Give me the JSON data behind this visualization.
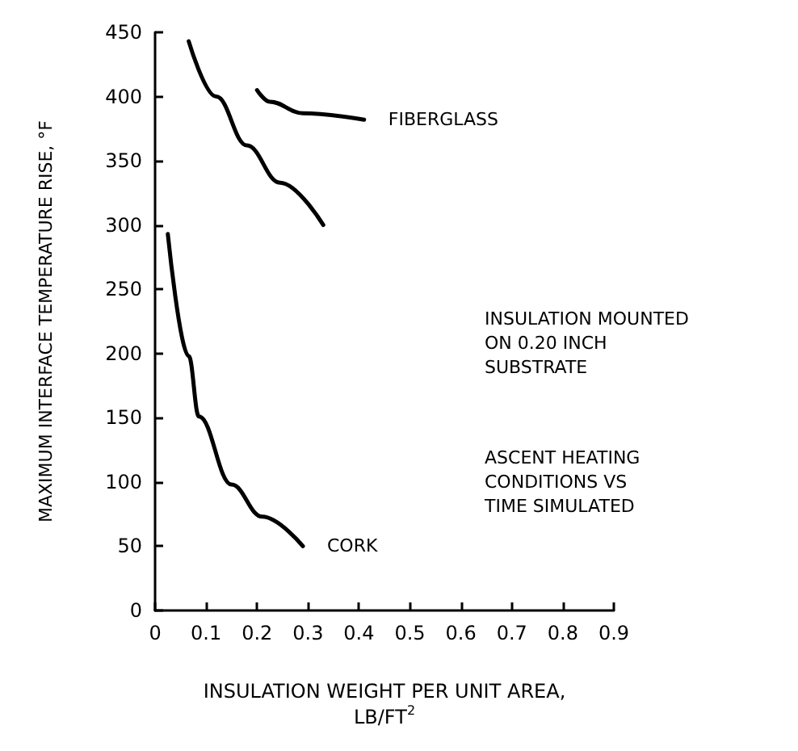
{
  "chart_data": {
    "type": "line",
    "xlabel": "INSULATION WEIGHT PER UNIT AREA,\nLB/FT$^{2}$",
    "ylabel": "MAXIMUM INTERFACE TEMPERATURE RISE, °F",
    "xlim": [
      0,
      0.9
    ],
    "xticks": [
      0,
      0.1,
      0.2,
      0.3,
      0.4,
      0.5,
      0.6,
      0.7,
      0.8,
      0.9
    ],
    "ylim": [
      0,
      450
    ],
    "yticks": [
      0,
      50,
      100,
      150,
      200,
      250,
      300,
      350,
      400,
      450
    ],
    "grid": false,
    "legend": false,
    "marker": "none",
    "line_style": "solid",
    "series": [
      {
        "name": "FIBERGLASS",
        "color": "#000000",
        "x": [
          0.2,
          0.225,
          0.29,
          0.41
        ],
        "values": [
          405,
          396,
          387,
          382
        ]
      },
      {
        "color": "#000000",
        "x": [
          0.066,
          0.12,
          0.18,
          0.245,
          0.33
        ],
        "values": [
          443,
          400,
          362,
          333,
          300
        ]
      },
      {
        "name": "CORK",
        "color": "#000000",
        "x": [
          0.025,
          0.066,
          0.086,
          0.15,
          0.21,
          0.29
        ],
        "values": [
          293,
          198,
          151,
          98,
          73,
          50
        ]
      }
    ],
    "annotations": [
      "INSULATION MOUNTED\nON 0.20 INCH\nSUBSTRATE",
      "ASCENT HEATING\nCONDITIONS VS\nTIME SIMULATED"
    ]
  }
}
